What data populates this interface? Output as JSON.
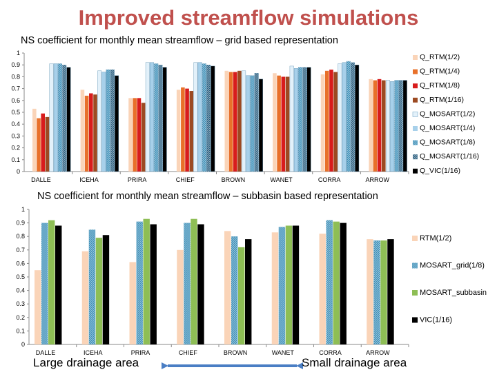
{
  "slide": {
    "title": "Improved streamflow simulations",
    "footer_left": "Large drainage area",
    "footer_right": "Small drainage area",
    "arrow_color": "#4a7ec4"
  },
  "chart_data": [
    {
      "type": "bar",
      "title": "NS coefficient for monthly mean streamflow – grid based representation",
      "categories": [
        "DALLE",
        "ICEHA",
        "PRIRA",
        "CHIEF",
        "BROWN",
        "WANET",
        "CORRA",
        "ARROW"
      ],
      "ylim": [
        0,
        1
      ],
      "yticks": [
        0,
        0.1,
        0.2,
        0.3,
        0.4,
        0.5,
        0.6,
        0.7,
        0.8,
        0.9,
        1
      ],
      "ytick_labels": [
        "0",
        "0.1",
        "0.2",
        "0.3",
        "0.4",
        "0.5",
        "0.6",
        "0.7",
        "0.8",
        "0.9",
        "1"
      ],
      "grid": false,
      "legend_position": "right",
      "series": [
        {
          "name": "Q_RTM(1/2)",
          "color": "#fad4b8",
          "values": [
            0.53,
            0.69,
            0.62,
            0.69,
            0.85,
            0.83,
            0.82,
            0.78
          ]
        },
        {
          "name": "Q_RTM(1/4)",
          "color": "#e8702a",
          "values": [
            0.45,
            0.64,
            0.62,
            0.71,
            0.84,
            0.81,
            0.85,
            0.77
          ]
        },
        {
          "name": "Q_RTM(1/8)",
          "color": "#d81c1c",
          "values": [
            0.49,
            0.66,
            0.62,
            0.7,
            0.84,
            0.8,
            0.86,
            0.78
          ]
        },
        {
          "name": "Q_RTM(1/16)",
          "color": "#9c4a22",
          "values": [
            0.46,
            0.65,
            0.58,
            0.68,
            0.85,
            0.8,
            0.84,
            0.77
          ]
        },
        {
          "name": "Q_MOSART(1/2)",
          "color": "#e3f1fa",
          "values": [
            0.91,
            0.85,
            0.92,
            0.92,
            0.85,
            0.89,
            0.91,
            0.77
          ]
        },
        {
          "name": "Q_MOSART(1/4)",
          "color": "#a7d0ea",
          "values": [
            0.91,
            0.84,
            0.92,
            0.92,
            0.81,
            0.87,
            0.92,
            0.76
          ]
        },
        {
          "name": "Q_MOSART(1/8)",
          "color": "#3d8fb8",
          "values": [
            0.91,
            0.86,
            0.91,
            0.91,
            0.81,
            0.88,
            0.93,
            0.77
          ]
        },
        {
          "name": "Q_MOSART(1/16)",
          "color": "#2b5f80",
          "values": [
            0.9,
            0.86,
            0.9,
            0.9,
            0.83,
            0.88,
            0.92,
            0.77
          ]
        },
        {
          "name": "Q_VIC(1/16)",
          "color": "#000000",
          "values": [
            0.88,
            0.81,
            0.88,
            0.89,
            0.78,
            0.88,
            0.9,
            0.77
          ]
        }
      ]
    },
    {
      "type": "bar",
      "title": "NS coefficient for monthly mean streamflow – subbasin based representation",
      "categories": [
        "DALLE",
        "ICEHA",
        "PRIRA",
        "CHIEF",
        "BROWN",
        "WANET",
        "CORRA",
        "ARROW"
      ],
      "ylim": [
        0,
        1
      ],
      "yticks": [
        0,
        0.1,
        0.2,
        0.3,
        0.4,
        0.5,
        0.6,
        0.7,
        0.8,
        0.9,
        1
      ],
      "ytick_labels": [
        "0",
        "0.1",
        "0.2",
        "0.3",
        "0.4",
        "0.5",
        "0.6",
        "0.7",
        "0.8",
        "0.9",
        "1"
      ],
      "grid": false,
      "legend_position": "right",
      "series": [
        {
          "name": "RTM(1/2)",
          "color": "#fad4b8",
          "values": [
            0.55,
            0.69,
            0.61,
            0.7,
            0.84,
            0.83,
            0.82,
            0.78
          ]
        },
        {
          "name": "MOSART_grid(1/8)",
          "color": "#3d8fb8",
          "values": [
            0.9,
            0.85,
            0.91,
            0.9,
            0.8,
            0.87,
            0.92,
            0.77
          ]
        },
        {
          "name": "MOSART_subbasin",
          "color": "#8ebe55",
          "values": [
            0.92,
            0.79,
            0.93,
            0.93,
            0.72,
            0.88,
            0.91,
            0.77
          ]
        },
        {
          "name": "VIC(1/16)",
          "color": "#000000",
          "values": [
            0.88,
            0.81,
            0.89,
            0.89,
            0.78,
            0.88,
            0.9,
            0.78
          ]
        }
      ]
    }
  ]
}
